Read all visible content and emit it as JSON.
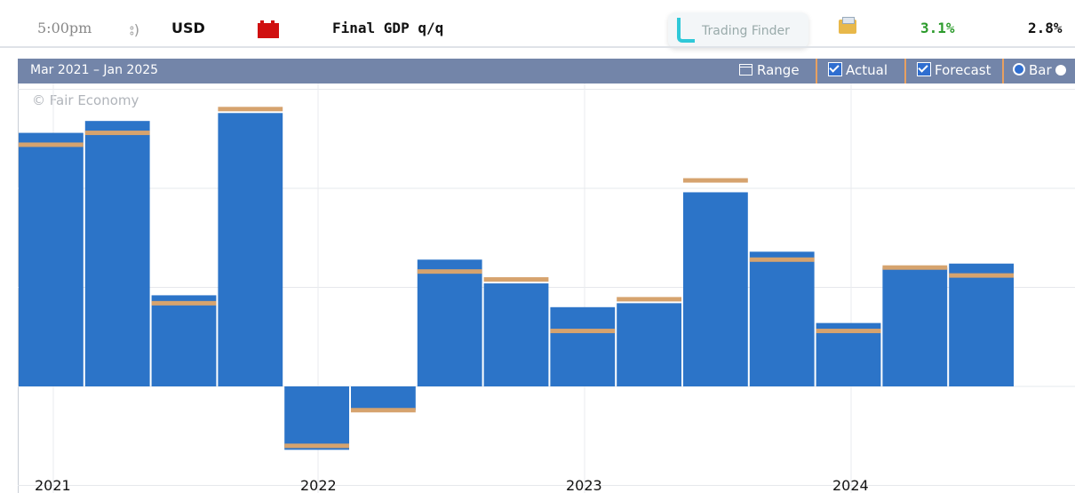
{
  "top_bar": {
    "time": "5:00pm",
    "currency": "USD",
    "event": "Final GDP q/q",
    "watermark": "Trading Finder",
    "actual": "3.1%",
    "forecast": "2.8%",
    "impact_color": "#d01010"
  },
  "header": {
    "range_text": "Mar 2021 – Jan 2025",
    "range_button": "Range",
    "actual_toggle": "Actual",
    "forecast_toggle": "Forecast",
    "bar_toggle": "Bar"
  },
  "chart_data": {
    "type": "bar",
    "copyright": "© Fair Economy",
    "bar_color": "#2c74c8",
    "forecast_color": "#d6a36e",
    "grid": true,
    "x_tick_labels": [
      "2021",
      "2022",
      "2023",
      "2024"
    ],
    "series": [
      {
        "name": "Actual",
        "values": [
          6.4,
          6.7,
          2.3,
          6.9,
          -1.6,
          -0.6,
          3.2,
          2.6,
          2.0,
          2.1,
          4.9,
          3.4,
          1.6,
          3.0,
          3.1
        ]
      },
      {
        "name": "Forecast",
        "values": [
          6.1,
          6.4,
          2.1,
          7.0,
          -1.5,
          -0.6,
          2.9,
          2.7,
          1.4,
          2.2,
          5.2,
          3.2,
          1.4,
          3.0,
          2.8
        ]
      }
    ],
    "ylim": [
      -2.0,
      7.8
    ]
  }
}
